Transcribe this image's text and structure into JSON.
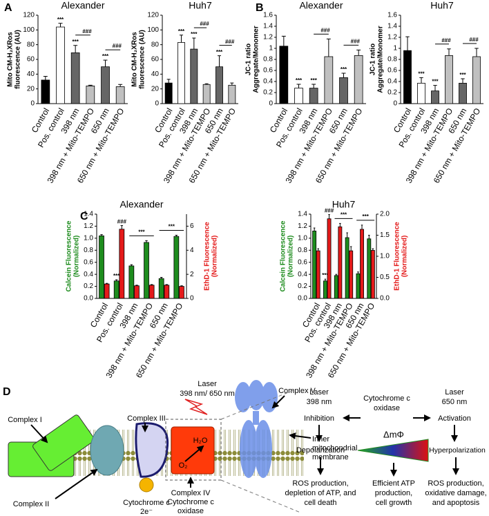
{
  "panel_labels": [
    "A",
    "B",
    "C",
    "D"
  ],
  "chart_data": [
    {
      "type": "bar",
      "title": "Alexander",
      "ylabel": [
        "Mito CM-H₂XRos",
        "fluorescence (AU)"
      ],
      "categories": [
        "Control",
        "Pos. control",
        "398 nm",
        "398 nm + Mito-TEMPO",
        "650 nm",
        "650 nm + Mito-TEMPO"
      ],
      "values": [
        32,
        104,
        69,
        24,
        50,
        23
      ],
      "errors": [
        5,
        5,
        10,
        1,
        9,
        3
      ],
      "colors": [
        "#000000",
        "#ffffff",
        "#666666",
        "#c0c0c0",
        "#666666",
        "#c0c0c0"
      ],
      "sig_labels": [
        null,
        "***",
        "***",
        null,
        "***",
        null
      ],
      "bracket_labels": [
        null,
        null,
        "###",
        null,
        "###",
        null
      ],
      "ylim": [
        0,
        120
      ],
      "yticks": [
        0,
        20,
        40,
        60,
        80,
        100,
        120
      ]
    },
    {
      "type": "bar",
      "title": "Huh7",
      "ylabel": [
        "Mito CM-H₂XRos",
        "fluorescence (AU)"
      ],
      "categories": [
        "Control",
        "Pos. control",
        "398 nm",
        "398 nm + Mito-TEMPO",
        "650 nm",
        "650 nm + Mito-TEMPO"
      ],
      "values": [
        28,
        83,
        74,
        26,
        50,
        25
      ],
      "errors": [
        5,
        10,
        15,
        1,
        15,
        3
      ],
      "colors": [
        "#000000",
        "#ffffff",
        "#666666",
        "#c0c0c0",
        "#666666",
        "#c0c0c0"
      ],
      "sig_labels": [
        null,
        "***",
        "***",
        null,
        "***",
        null
      ],
      "bracket_labels": [
        null,
        null,
        "###",
        null,
        "###",
        null
      ],
      "ylim": [
        0,
        120
      ],
      "yticks": [
        0,
        20,
        40,
        60,
        80,
        100,
        120
      ]
    },
    {
      "type": "bar",
      "title": "Alexander",
      "ylabel": [
        "JC-1 ratio",
        "Aggregate/Monomer"
      ],
      "categories": [
        "Control",
        "Pos. control",
        "398 nm",
        "398 nm + Mito-TEMPO",
        "650 nm",
        "650 nm + Mito-TEMPO"
      ],
      "values": [
        1.04,
        0.28,
        0.28,
        0.85,
        0.47,
        0.87
      ],
      "errors": [
        0.18,
        0.07,
        0.07,
        0.32,
        0.08,
        0.1
      ],
      "colors": [
        "#000000",
        "#ffffff",
        "#666666",
        "#c0c0c0",
        "#666666",
        "#c0c0c0"
      ],
      "sig_labels": [
        null,
        "***",
        "***",
        null,
        "***",
        null
      ],
      "bracket_labels": [
        null,
        null,
        "###",
        null,
        "###",
        null
      ],
      "ylim": [
        0,
        1.6
      ],
      "yticks": [
        0,
        0.2,
        0.4,
        0.6,
        0.8,
        1,
        1.2,
        1.4,
        1.6
      ]
    },
    {
      "type": "bar",
      "title": "Huh7",
      "ylabel": [
        "JC-1 ratio",
        "Aggregate/Monomer"
      ],
      "categories": [
        "Control",
        "Pos. control",
        "398 nm",
        "398 nm + Mito-TEMPO",
        "650 nm",
        "650 nm + Mito-TEMPO"
      ],
      "values": [
        0.96,
        0.37,
        0.23,
        0.87,
        0.37,
        0.85
      ],
      "errors": [
        0.25,
        0.1,
        0.1,
        0.12,
        0.08,
        0.15
      ],
      "colors": [
        "#000000",
        "#ffffff",
        "#666666",
        "#c0c0c0",
        "#666666",
        "#c0c0c0"
      ],
      "sig_labels": [
        null,
        "***",
        "***",
        null,
        "***",
        null
      ],
      "bracket_labels": [
        null,
        null,
        "###",
        null,
        "###",
        null
      ],
      "ylim": [
        0,
        1.6
      ],
      "yticks": [
        0,
        0.2,
        0.4,
        0.6,
        0.8,
        1,
        1.2,
        1.4,
        1.6
      ]
    },
    {
      "type": "bar",
      "title": "Alexander",
      "ylabel": [
        "Calcein Fluorescence",
        "(Normalized)"
      ],
      "y2label": [
        "EthD-1 Fluorescence",
        "(Normalized)"
      ],
      "categories": [
        "Control",
        "Pos. control",
        "398 nm",
        "398 nm + Mito-TEMPO",
        "650 nm",
        "650 nm + Mito-TEMPO"
      ],
      "series": [
        {
          "color": "#1e8c1e",
          "values": [
            1.04,
            0.29,
            0.54,
            0.93,
            0.33,
            1.03
          ],
          "errors": [
            0.02,
            0.02,
            0.02,
            0.03,
            0.02,
            0.02
          ],
          "sig_labels": [
            null,
            "***",
            null,
            null,
            null,
            null
          ]
        },
        {
          "color": "#e41a1a",
          "axis": "y2",
          "values": [
            1.2,
            5.75,
            1.05,
            1.1,
            1.1,
            1.0
          ],
          "errors": [
            0.05,
            0.3,
            0.05,
            0.05,
            0.05,
            0.05
          ],
          "sig_labels": [
            null,
            "###",
            null,
            null,
            null,
            null
          ]
        }
      ],
      "bracket_labels": [
        null,
        null,
        "***",
        null,
        "***",
        null
      ],
      "ylim": [
        0,
        1.4
      ],
      "yticks": [
        {
          "value": 0,
          "label": "0.0"
        },
        0.2,
        0.4,
        0.6,
        0.8,
        {
          "value": 1,
          "label": "1.0"
        },
        1.2,
        1.4
      ],
      "y2lim": [
        0,
        7
      ],
      "y2ticks": [
        0,
        2,
        4,
        6
      ]
    },
    {
      "type": "bar",
      "title": "Huh7",
      "ylabel": [
        "Calcein Fluorescence",
        "(Normalized)"
      ],
      "y2label": [
        "EthD-1 Fluorescence",
        "(Normalized)"
      ],
      "categories": [
        "Control",
        "Pos. control",
        "398 nm",
        "398 nm + Mito-TEMPO",
        "650 nm",
        "650 nm + Mito-TEMPO"
      ],
      "series": [
        {
          "color": "#1e8c1e",
          "values": [
            1.12,
            0.29,
            0.38,
            1.01,
            0.41,
            0.99
          ],
          "errors": [
            0.05,
            0.03,
            0.02,
            0.08,
            0.03,
            0.06
          ],
          "sig_labels": [
            null,
            "***",
            null,
            null,
            null,
            null
          ]
        },
        {
          "color": "#e41a1a",
          "axis": "y2",
          "values": [
            1.13,
            1.89,
            1.7,
            1.13,
            1.64,
            1.14
          ],
          "errors": [
            0.05,
            0.1,
            0.08,
            0.1,
            0.1,
            0.04
          ],
          "sig_labels": [
            null,
            "###",
            null,
            null,
            null,
            null
          ]
        }
      ],
      "bracket_labels": [
        null,
        null,
        "***",
        null,
        "***",
        null
      ],
      "ylim": [
        0,
        1.4
      ],
      "yticks": [
        {
          "value": 0,
          "label": "0.0"
        },
        0.2,
        0.4,
        0.6,
        0.8,
        {
          "value": 1,
          "label": "1.0"
        },
        1.2,
        1.4
      ],
      "y2lim": [
        0,
        2
      ],
      "y2ticks": [
        {
          "value": 0,
          "label": "0.0"
        },
        0.5,
        {
          "value": 1,
          "label": "1.0"
        },
        1.5,
        {
          "value": 2,
          "label": "2.0"
        }
      ]
    }
  ],
  "diagram": {
    "laser": [
      "Laser",
      "398 nm/ 650 nm"
    ],
    "complex_1": "Complex I",
    "complex_2": "Complex II",
    "complex_3": "Complex III",
    "complex_5": "Complex V",
    "complex_4": [
      "Complex IV",
      "Cytochrome c",
      "oxidase"
    ],
    "cytochrome_c": [
      "Cytochrome c",
      "2e⁻"
    ],
    "membrane": [
      "Inner",
      "mitochondrial",
      "membrane"
    ],
    "h2o": "H₂O",
    "o2": "O₂",
    "flow": {
      "laser_398": [
        "Laser",
        "398 nm"
      ],
      "laser_650": [
        "Laser",
        "650 nm"
      ],
      "oxidase": [
        "Cytochrome c",
        "oxidase"
      ],
      "inhibition": "Inhibition",
      "activation": "Activation",
      "depolarization": "Depolarization",
      "potential": "ΔmΦ",
      "hyperpolarization": "Hyperpolarization",
      "outcome_398": [
        "ROS production,",
        "depletion of ATP, and",
        "cell death"
      ],
      "outcome_mid": [
        "Efficient ATP",
        "production,",
        "cell growth"
      ],
      "outcome_650": [
        "ROS production,",
        "oxidative damage,",
        "and apoptosis"
      ]
    }
  }
}
